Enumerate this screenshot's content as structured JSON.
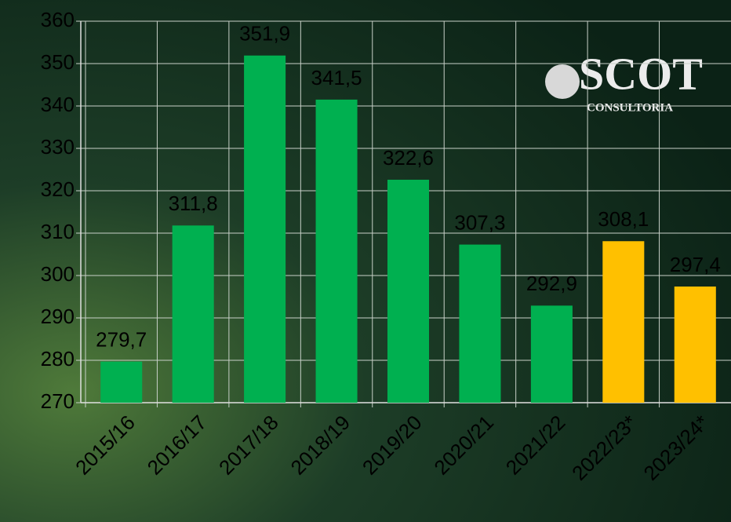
{
  "chart_data": {
    "type": "bar",
    "categories": [
      "2015/16",
      "2016/17",
      "2017/18",
      "2018/19",
      "2019/20",
      "2020/21",
      "2021/22",
      "2022/23*",
      "2023/24*"
    ],
    "values": [
      279.7,
      311.8,
      351.9,
      341.5,
      322.6,
      307.3,
      292.9,
      308.1,
      297.4
    ],
    "value_labels": [
      "279,7",
      "311,8",
      "351,9",
      "341,5",
      "322,6",
      "307,3",
      "292,9",
      "308,1",
      "297,4"
    ],
    "colors": [
      "#00b050",
      "#00b050",
      "#00b050",
      "#00b050",
      "#00b050",
      "#00b050",
      "#00b050",
      "#ffc000",
      "#ffc000"
    ],
    "ylim": [
      270,
      360
    ],
    "yticks": [
      270,
      280,
      290,
      300,
      310,
      320,
      330,
      340,
      350,
      360
    ],
    "grid": true
  },
  "logo": {
    "name": "SCOT",
    "subtitle": "CONSULTORIA"
  }
}
